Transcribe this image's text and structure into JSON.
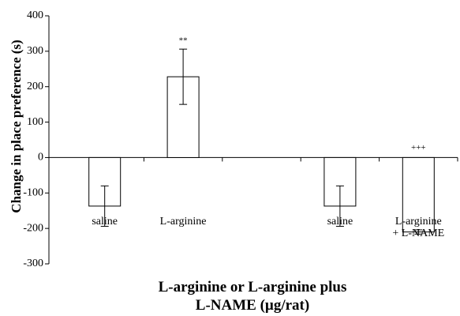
{
  "chart_data": {
    "type": "bar",
    "y_label": "Change in place preference (s)",
    "x_label": "L-arginine or L-arginine plus\nL-NAME (µg/rat)",
    "categories": [
      "saline",
      "L-arginine",
      null,
      "saline",
      "L-arginine\n+ L-NAME"
    ],
    "values": [
      -137,
      228,
      null,
      -137,
      -210
    ],
    "errors": [
      57,
      78,
      null,
      57,
      6
    ],
    "value_annotations": [
      null,
      "**",
      null,
      null,
      "+++"
    ],
    "color": "#ffffff",
    "ylim": [
      -300,
      400
    ],
    "yticks": [
      -300,
      -200,
      -100,
      0,
      100,
      200,
      300,
      400
    ]
  }
}
